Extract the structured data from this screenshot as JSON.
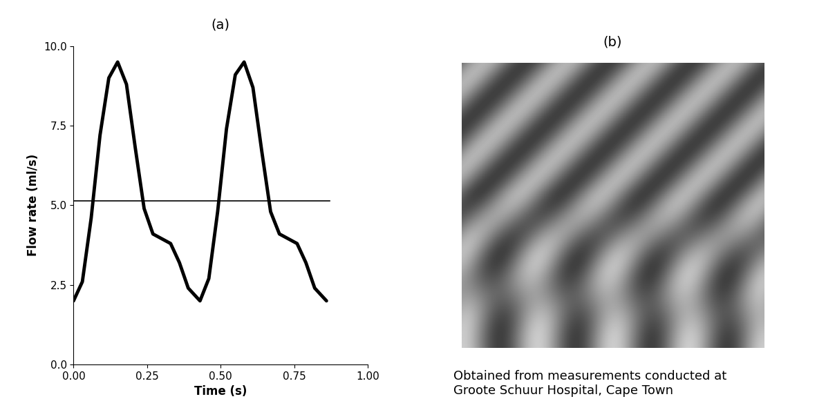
{
  "chart_data": {
    "type": "line",
    "title": "(a)",
    "x_label": "Time (s)",
    "y_label": "Flow rate (ml/s)",
    "x": [
      0.0,
      0.03,
      0.06,
      0.09,
      0.12,
      0.15,
      0.18,
      0.21,
      0.24,
      0.27,
      0.3,
      0.33,
      0.36,
      0.39,
      0.43,
      0.46,
      0.49,
      0.52,
      0.55,
      0.58,
      0.61,
      0.64,
      0.67,
      0.7,
      0.73,
      0.76,
      0.79,
      0.82,
      0.86
    ],
    "series": [
      {
        "color": "#000000",
        "line_style": "solid",
        "values": [
          2.0,
          2.6,
          4.6,
          7.2,
          9.0,
          9.5,
          8.8,
          6.8,
          4.9,
          4.1,
          3.95,
          3.8,
          3.2,
          2.4,
          2.0,
          2.7,
          4.8,
          7.4,
          9.1,
          9.5,
          8.7,
          6.7,
          4.8,
          4.1,
          3.95,
          3.8,
          3.2,
          2.4,
          2.0
        ]
      }
    ],
    "mean_line": {
      "y": 5.15,
      "x": [
        0.0,
        0.87
      ],
      "color": "#000000"
    },
    "xlim": [
      0.0,
      1.0
    ],
    "xticks": [
      {
        "value": 0.0,
        "label": "0.00"
      },
      {
        "value": 0.25,
        "label": "0.25"
      },
      {
        "value": 0.5,
        "label": "0.50"
      },
      {
        "value": 0.75,
        "label": "0.75"
      },
      {
        "value": 1.0,
        "label": "1.00"
      }
    ],
    "ylim": [
      0.0,
      10.0
    ],
    "yticks": [
      {
        "value": 0.0,
        "label": "0.0"
      },
      {
        "value": 2.5,
        "label": "2.5"
      },
      {
        "value": 5.0,
        "label": "5.0"
      },
      {
        "value": 7.5,
        "label": "7.5"
      },
      {
        "value": 10.0,
        "label": "10.0"
      }
    ],
    "grid": false
  },
  "image_panel": {
    "title": "(b)",
    "caption": "Obtained from measurements conducted at\nGroote Schuur Hospital, Cape Town"
  }
}
